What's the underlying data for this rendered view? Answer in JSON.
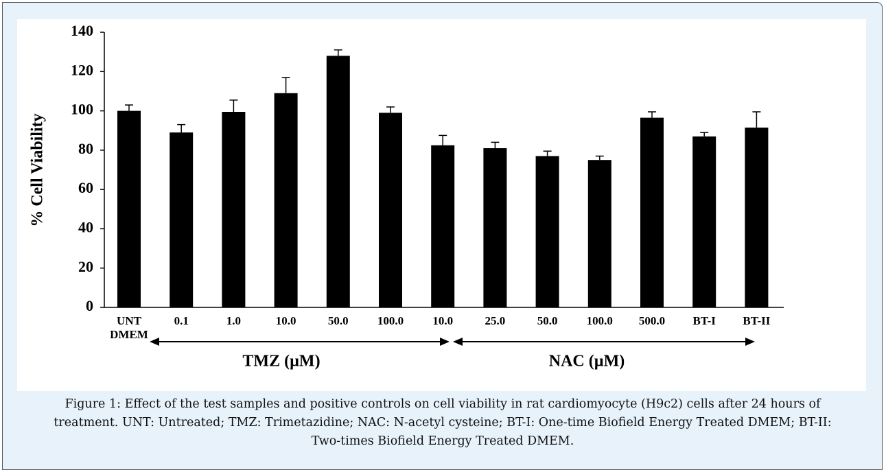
{
  "chart_data": {
    "type": "bar",
    "y_label": "% Cell Viability",
    "categories": [
      "UNT DMEM",
      "0.1",
      "1.0",
      "10.0",
      "50.0",
      "100.0",
      "10.0",
      "25.0",
      "50.0",
      "100.0",
      "500.0",
      "BT-I",
      "BT-II"
    ],
    "values": [
      100,
      89,
      99.5,
      109,
      128,
      99,
      82.5,
      81,
      77,
      75,
      96.5,
      87,
      91.5
    ],
    "errors": [
      3,
      4,
      6,
      8,
      3,
      3,
      5,
      3,
      2.5,
      2,
      3,
      2,
      8
    ],
    "color": "#000000",
    "ylim": [
      0,
      140
    ],
    "yticks": [
      0,
      20,
      40,
      60,
      80,
      100,
      120,
      140
    ],
    "grid": false,
    "groups": [
      "TMZ (µM)",
      "NAC (µM)"
    ]
  },
  "caption": "Figure 1: Effect of the test samples and positive controls on cell viability in rat cardiomyocyte (H9c2) cells after 24 hours of treatment. UNT: Untreated; TMZ: Trimetazidine; NAC: N-acetyl cysteine; BT-I: One-time Biofield Energy Treated DMEM; BT-II: Two-times Biofield Energy Treated DMEM."
}
